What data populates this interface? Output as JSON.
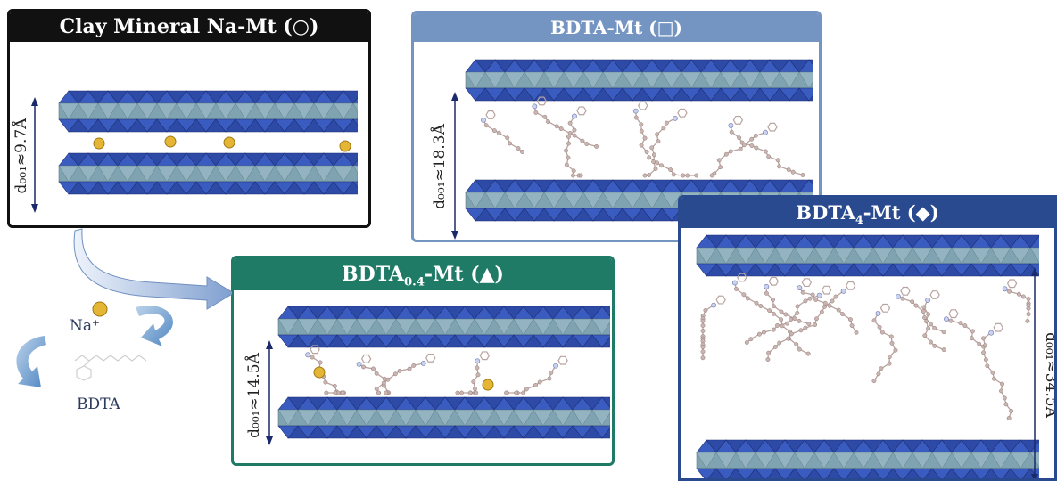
{
  "panels": {
    "na_mt": {
      "title": "Clay Mineral Na-Mt (○)",
      "d_label": "d₀₀₁≈9.7Å",
      "title_bg": "#111111",
      "border": "#111111"
    },
    "bdta_mt": {
      "title": "BDTA-Mt (□)",
      "d_label": "d₀₀₁≈18.3Å",
      "title_bg": "#7494c2",
      "border": "#7494c2"
    },
    "bdta04_mt": {
      "title_main": "BDTA",
      "title_sub": "0.4",
      "title_rest": "-Mt (▲)",
      "d_label": "d₀₀₁≈14.5Å",
      "title_bg": "#1f7a66",
      "border": "#1f7a66"
    },
    "bdta4_mt": {
      "title_main": "BDTA",
      "title_sub": "4",
      "title_rest": "-Mt (◆)",
      "d_label": "d₀₀₁≈34.5Å",
      "title_bg": "#2a4a8f",
      "border": "#2a4a8f"
    }
  },
  "legend": {
    "na_label": "Na⁺",
    "bdta_label": "BDTA"
  },
  "colors": {
    "clay_dark": "#2d4aa6",
    "clay_mid": "#3a5cc0",
    "octa": "#7fa3b0",
    "molecule": "#b9a3a0",
    "sodium": "#e5b635"
  }
}
